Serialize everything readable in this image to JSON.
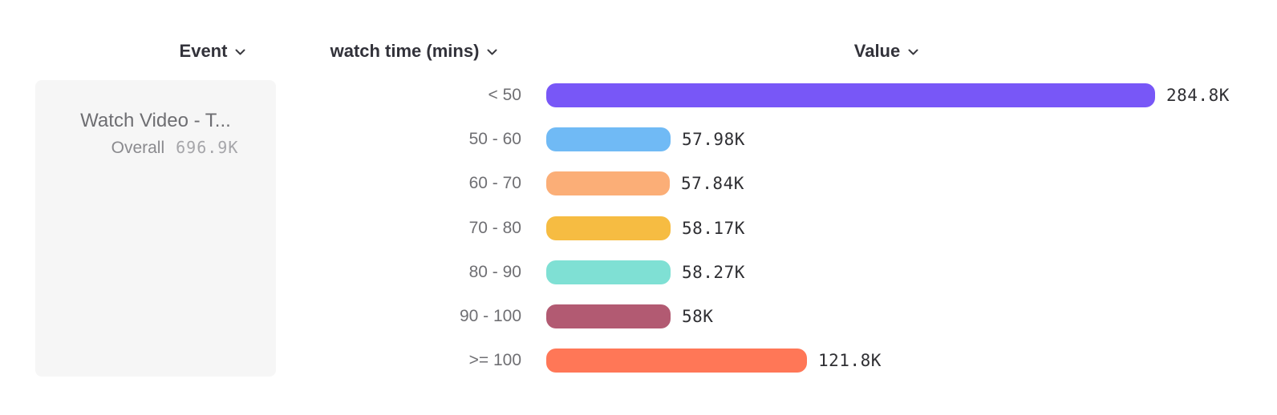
{
  "header": {
    "event_label": "Event",
    "breakdown_label": "watch time (mins)",
    "value_label": "Value"
  },
  "event_card": {
    "title": "Watch Video - T...",
    "overall_label": "Overall",
    "overall_value": "696.9K"
  },
  "chart_data": {
    "type": "bar",
    "orientation": "horizontal",
    "title": "",
    "xlabel": "Value",
    "ylabel": "watch time (mins)",
    "categories": [
      "< 50",
      "50 - 60",
      "60 - 70",
      "70 - 80",
      "80 - 90",
      "90 - 100",
      ">= 100"
    ],
    "values": [
      284800,
      57980,
      57840,
      58170,
      58270,
      58000,
      121800
    ],
    "value_labels": [
      "284.8K",
      "57.98K",
      "57.84K",
      "58.17K",
      "58.27K",
      "58K",
      "121.8K"
    ],
    "bar_colors": [
      "#7857F7",
      "#70BAF5",
      "#FBAE77",
      "#F6BC42",
      "#7FE0D4",
      "#B25A72",
      "#FF7757"
    ],
    "max_value": 284800,
    "grid": false,
    "legend_position": "left"
  },
  "icons": {
    "chevron_down": "chevron-down-icon",
    "chevron_color": "#3a3a40"
  }
}
